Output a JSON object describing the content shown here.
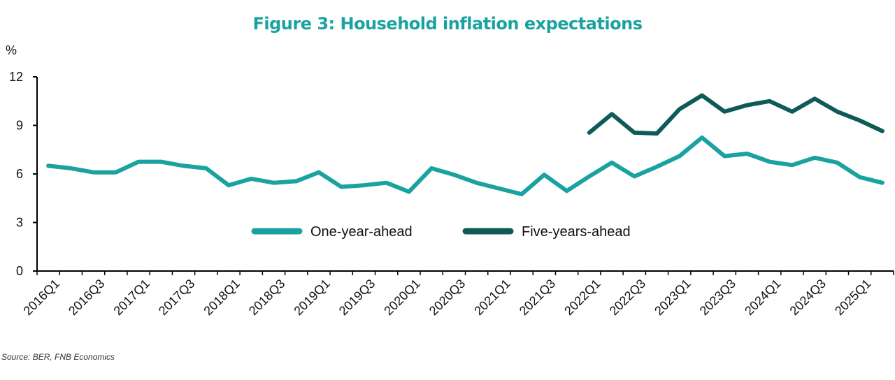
{
  "title": "Figure 3: Household inflation expectations",
  "unit": "%",
  "source": "Source: BER, FNB Economics",
  "colors": {
    "title": "#1aa2a0",
    "one_year": "#1aa2a0",
    "five_years": "#0f5a57",
    "axis": "#000000"
  },
  "chart_data": {
    "type": "line",
    "title": "Figure 3: Household inflation expectations",
    "ylabel": "%",
    "ylim": [
      0,
      12
    ],
    "yticks": [
      0,
      3,
      6,
      9,
      12
    ],
    "grid": false,
    "legend": "center",
    "x": [
      "2016Q1",
      "2016Q2",
      "2016Q3",
      "2016Q4",
      "2017Q1",
      "2017Q2",
      "2017Q3",
      "2017Q4",
      "2018Q1",
      "2018Q2",
      "2018Q3",
      "2018Q4",
      "2019Q1",
      "2019Q2",
      "2019Q3",
      "2019Q4",
      "2020Q1",
      "2020Q2",
      "2020Q3",
      "2020Q4",
      "2021Q1",
      "2021Q2",
      "2021Q3",
      "2021Q4",
      "2022Q1",
      "2022Q2",
      "2022Q3",
      "2022Q4",
      "2023Q1",
      "2023Q2",
      "2023Q3",
      "2023Q4",
      "2024Q1",
      "2024Q2",
      "2024Q3",
      "2024Q4",
      "2025Q1",
      "2025Q2"
    ],
    "xtick_labels": [
      "2016Q1",
      "2016Q3",
      "2017Q1",
      "2017Q3",
      "2018Q1",
      "2018Q3",
      "2019Q1",
      "2019Q3",
      "2020Q1",
      "2020Q3",
      "2021Q1",
      "2021Q3",
      "2022Q1",
      "2022Q3",
      "2023Q1",
      "2023Q3",
      "2024Q1",
      "2024Q3",
      "2025Q1"
    ],
    "series": [
      {
        "name": "One-year-ahead",
        "color": "#1aa2a0",
        "values": [
          6.5,
          6.35,
          6.1,
          6.1,
          6.75,
          6.75,
          6.5,
          6.35,
          5.3,
          5.7,
          5.45,
          5.55,
          6.1,
          5.2,
          5.3,
          5.45,
          4.9,
          6.35,
          5.95,
          5.45,
          5.1,
          4.75,
          5.95,
          4.95,
          5.85,
          6.7,
          5.85,
          6.45,
          7.1,
          8.25,
          7.1,
          7.25,
          6.75,
          6.55,
          7.0,
          6.7,
          5.8,
          5.45
        ]
      },
      {
        "name": "Five-years-ahead",
        "color": "#0f5a57",
        "values": [
          null,
          null,
          null,
          null,
          null,
          null,
          null,
          null,
          null,
          null,
          null,
          null,
          null,
          null,
          null,
          null,
          null,
          null,
          null,
          null,
          null,
          null,
          null,
          null,
          8.55,
          9.7,
          8.55,
          8.5,
          10.0,
          10.85,
          9.85,
          10.25,
          10.5,
          9.85,
          10.65,
          9.85,
          9.3,
          8.65
        ]
      }
    ]
  }
}
